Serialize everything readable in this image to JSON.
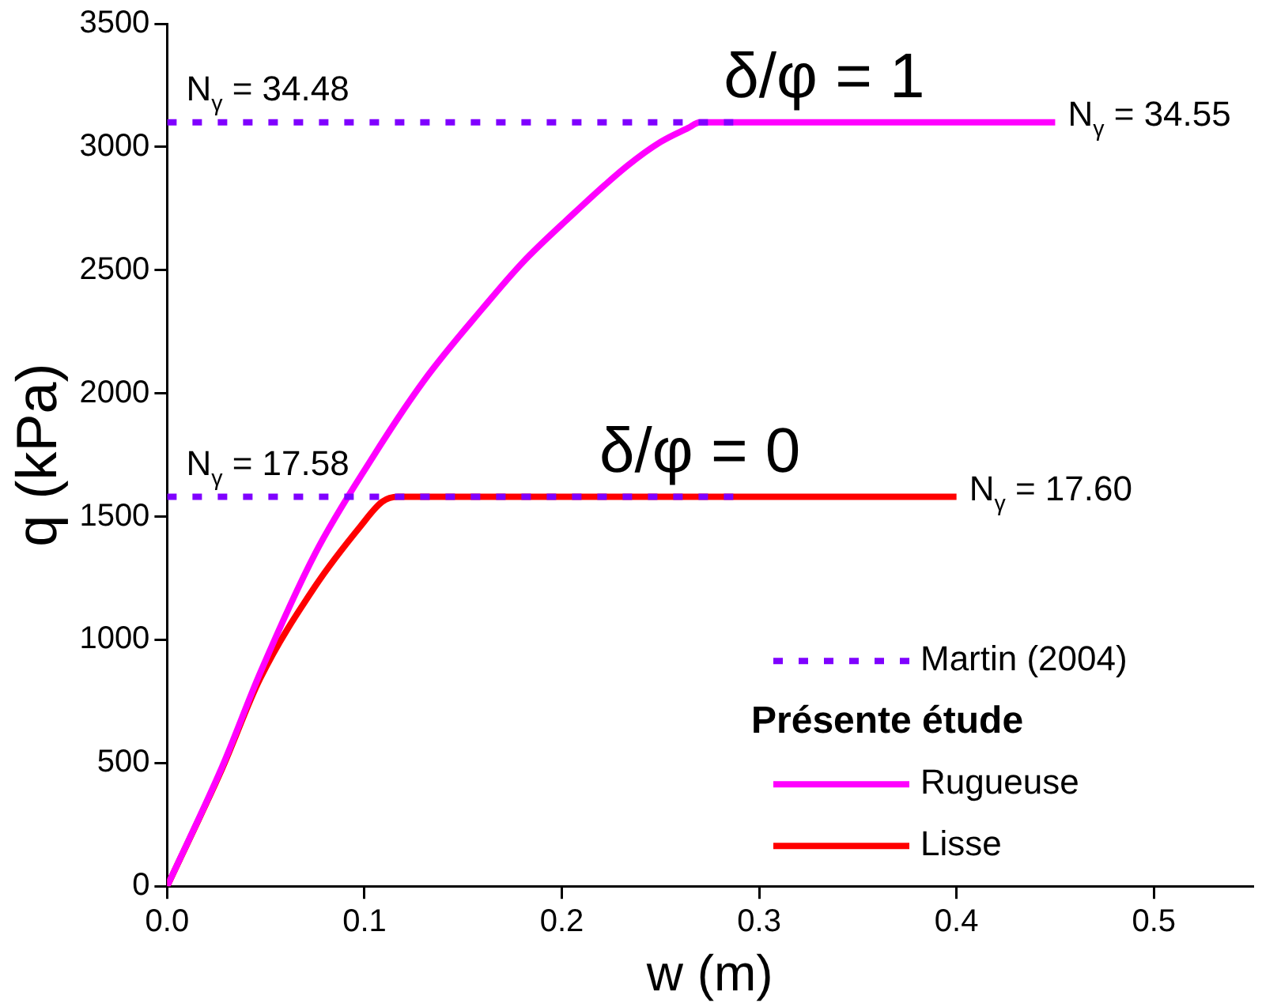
{
  "chart_data": {
    "type": "line",
    "xlabel": "w (m)",
    "ylabel": "q (kPa)",
    "legend_title": "Présente étude",
    "xlim": [
      0,
      0.55
    ],
    "xticks": [
      {
        "value": 0,
        "label": "0.0"
      },
      0.1,
      0.2,
      0.3,
      0.4,
      0.5
    ],
    "ylim": [
      0,
      3500
    ],
    "yticks": [
      0,
      500,
      1000,
      1500,
      2000,
      2500,
      3000,
      3500
    ],
    "grid": false,
    "legend": "bottom right",
    "marker": "none",
    "series": [
      {
        "name": "Martin (2004)",
        "color": "#7f00ff",
        "line_style": "dotted",
        "x": [
          0,
          0.29
        ],
        "values": [
          3100,
          3100
        ]
      },
      {
        "color": "#7f00ff",
        "line_style": "dotted",
        "x": [
          0,
          0.29
        ],
        "values": [
          1580,
          1580
        ]
      },
      {
        "name": "Rugueuse",
        "color": "#ff00ff",
        "line_style": "solid",
        "x": [
          0,
          0.028,
          0.047,
          0.075,
          0.103,
          0.13,
          0.16,
          0.18,
          0.202,
          0.233,
          0.25,
          0.264,
          0.27,
          0.45
        ],
        "values": [
          0,
          487,
          863,
          1350,
          1726,
          2050,
          2346,
          2530,
          2700,
          2922,
          3020,
          3077,
          3100,
          3100
        ]
      },
      {
        "name": "Lisse",
        "color": "#ff0000",
        "line_style": "solid",
        "x": [
          0,
          0.028,
          0.047,
          0.075,
          0.098,
          0.109,
          0.117,
          0.4
        ],
        "values": [
          0,
          480,
          841,
          1217,
          1461,
          1560,
          1580,
          1580
        ]
      }
    ],
    "annotations": [
      {
        "text": "N$_{γ}$ = 34.48",
        "x": 0,
        "y": 3100
      },
      {
        "text": "δ/φ = 1",
        "x": 0.333,
        "y": 3100
      },
      {
        "text": "N$_{γ}$ = 34.55",
        "x": 0.45,
        "y": 3100
      },
      {
        "text": "N$_{γ}$ = 17.58",
        "x": 0,
        "y": 1580
      },
      {
        "text": "δ/φ = 0",
        "x": 0.27,
        "y": 1580
      },
      {
        "text": "N$_{γ}$ = 17.60",
        "x": 0.4,
        "y": 1580
      }
    ]
  }
}
